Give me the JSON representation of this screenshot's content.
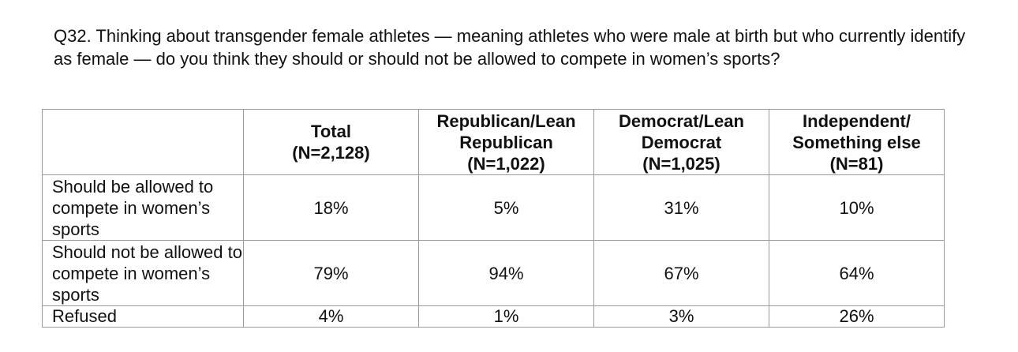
{
  "question": "Q32. Thinking about transgender female athletes — meaning athletes who were male at birth but who currently identify as female — do you think they should or should not be allowed to compete in women’s sports?",
  "table": {
    "columns": [
      {
        "name": "Total",
        "n": "(N=2,128)"
      },
      {
        "name": "Republican/Lean Republican",
        "line1": "Republican/Lean",
        "line2": "Republican",
        "n": "(N=1,022)"
      },
      {
        "name": "Democrat/Lean Democrat",
        "line1": "Democrat/Lean",
        "line2": "Democrat",
        "n": "(N=1,025)"
      },
      {
        "name": "Independent/ Something else",
        "line1": "Independent/",
        "line2": "Something else",
        "n": "(N=81)"
      }
    ],
    "rows": [
      {
        "label": "Should be allowed to compete in women’s sports",
        "values": [
          "18%",
          "5%",
          "31%",
          "10%"
        ]
      },
      {
        "label": "Should not be allowed to compete in women’s sports",
        "values": [
          "79%",
          "94%",
          "67%",
          "64%"
        ]
      },
      {
        "label": "Refused",
        "values": [
          "4%",
          "1%",
          "3%",
          "26%"
        ]
      }
    ]
  }
}
